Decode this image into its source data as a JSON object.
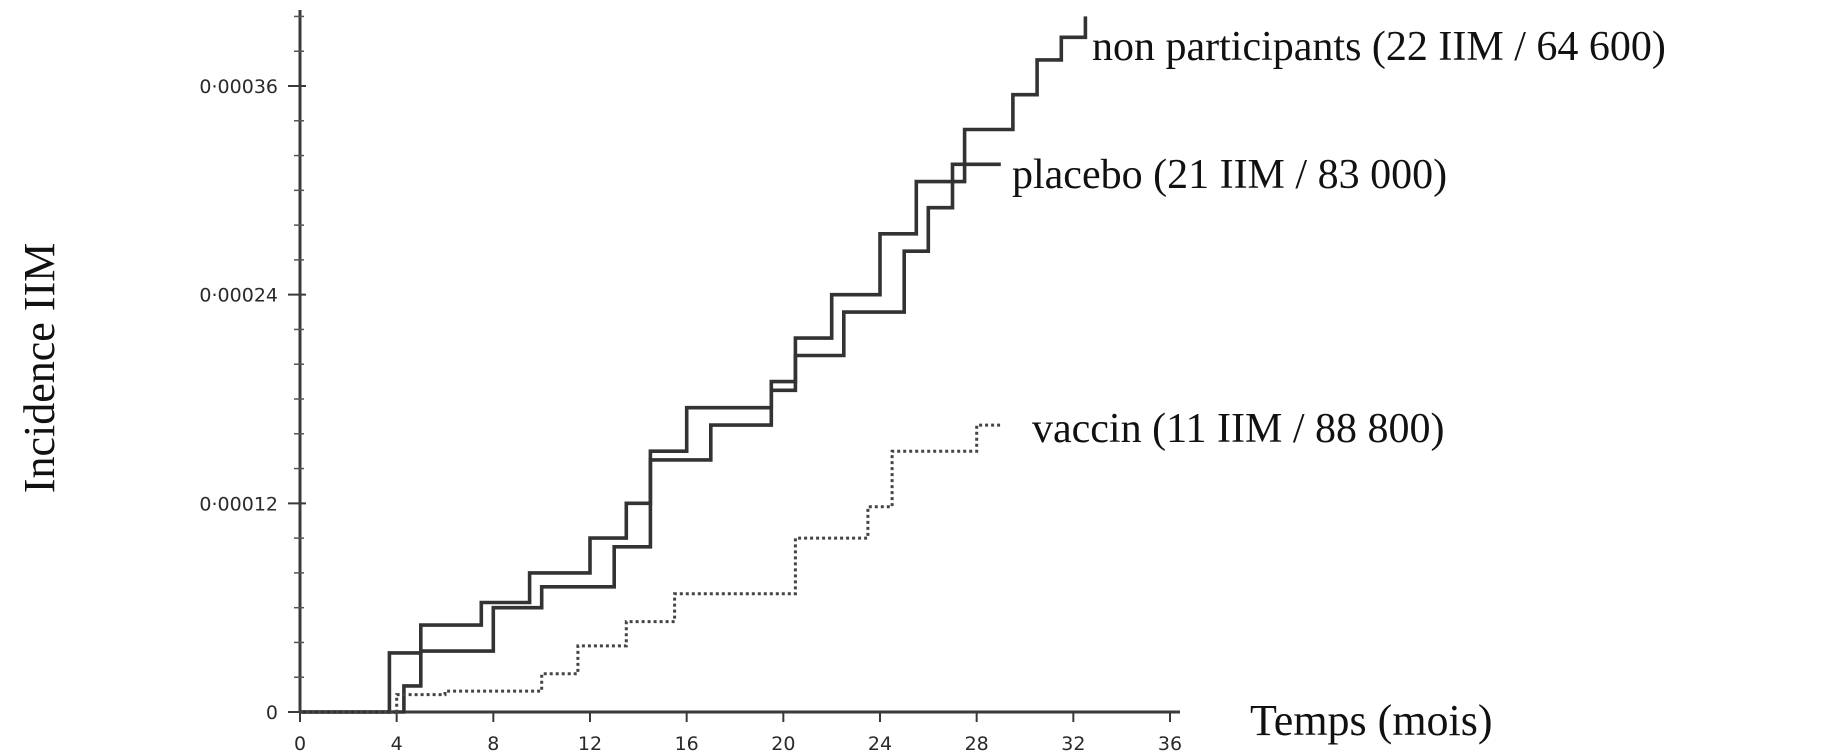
{
  "chart_data": {
    "type": "line",
    "step": true,
    "xlabel": "Temps (mois)",
    "ylabel": "Incidence  IIM",
    "xlim": [
      0,
      36
    ],
    "ylim": [
      0,
      0.0004
    ],
    "x_ticks": [
      0,
      4,
      8,
      12,
      16,
      20,
      24,
      28,
      32,
      36
    ],
    "x_tick_labels": [
      "0",
      "4",
      "8",
      "12",
      "16",
      "20",
      "24",
      "28",
      "32",
      "36"
    ],
    "y_ticks": [
      0,
      0.00012,
      0.00024,
      0.00036
    ],
    "y_tick_labels": [
      "0",
      "0·00012",
      "0·00024",
      "0·00036"
    ],
    "grid": false,
    "series": [
      {
        "name": "non participants (22 IIM / 64 600)",
        "style": "solid",
        "color": "#333333",
        "points": [
          [
            0,
            0
          ],
          [
            3.7,
            0
          ],
          [
            3.7,
            3.4e-05
          ],
          [
            5,
            3.4e-05
          ],
          [
            5,
            5e-05
          ],
          [
            7.5,
            5e-05
          ],
          [
            7.5,
            6.3e-05
          ],
          [
            9.5,
            6.3e-05
          ],
          [
            9.5,
            8e-05
          ],
          [
            12,
            8e-05
          ],
          [
            12,
            0.0001
          ],
          [
            13.5,
            0.0001
          ],
          [
            13.5,
            0.00012
          ],
          [
            14.5,
            0.00012
          ],
          [
            14.5,
            0.00015
          ],
          [
            16,
            0.00015
          ],
          [
            16,
            0.000175
          ],
          [
            19.5,
            0.000175
          ],
          [
            19.5,
            0.00019
          ],
          [
            20.5,
            0.00019
          ],
          [
            20.5,
            0.000215
          ],
          [
            22,
            0.000215
          ],
          [
            22,
            0.00024
          ],
          [
            24,
            0.00024
          ],
          [
            24,
            0.000275
          ],
          [
            25.5,
            0.000275
          ],
          [
            25.5,
            0.000305
          ],
          [
            27.5,
            0.000305
          ],
          [
            27.5,
            0.000335
          ],
          [
            29.5,
            0.000335
          ],
          [
            29.5,
            0.000355
          ],
          [
            30.5,
            0.000355
          ],
          [
            30.5,
            0.000375
          ],
          [
            31.5,
            0.000375
          ],
          [
            31.5,
            0.000388
          ],
          [
            32.5,
            0.000388
          ],
          [
            32.5,
            0.0004
          ]
        ]
      },
      {
        "name": "placebo (21 IIM  / 83 000)",
        "style": "solid",
        "color": "#333333",
        "points": [
          [
            0,
            0
          ],
          [
            4.3,
            0
          ],
          [
            4.3,
            1.5e-05
          ],
          [
            5,
            1.5e-05
          ],
          [
            5,
            3.5e-05
          ],
          [
            8,
            3.5e-05
          ],
          [
            8,
            6e-05
          ],
          [
            10,
            6e-05
          ],
          [
            10,
            7.2e-05
          ],
          [
            13,
            7.2e-05
          ],
          [
            13,
            9.5e-05
          ],
          [
            14.5,
            9.5e-05
          ],
          [
            14.5,
            0.000145
          ],
          [
            17,
            0.000145
          ],
          [
            17,
            0.000165
          ],
          [
            19.5,
            0.000165
          ],
          [
            19.5,
            0.000185
          ],
          [
            20.5,
            0.000185
          ],
          [
            20.5,
            0.000205
          ],
          [
            22.5,
            0.000205
          ],
          [
            22.5,
            0.00023
          ],
          [
            25,
            0.00023
          ],
          [
            25,
            0.000265
          ],
          [
            26,
            0.000265
          ],
          [
            26,
            0.00029
          ],
          [
            27,
            0.00029
          ],
          [
            27,
            0.000315
          ],
          [
            29,
            0.000315
          ]
        ]
      },
      {
        "name": "vaccin (11 IIM / 88 800)",
        "style": "dotted",
        "color": "#444444",
        "points": [
          [
            0,
            0
          ],
          [
            4,
            0
          ],
          [
            4,
            1e-05
          ],
          [
            6,
            1e-05
          ],
          [
            6,
            1.2e-05
          ],
          [
            10,
            1.2e-05
          ],
          [
            10,
            2.2e-05
          ],
          [
            11.5,
            2.2e-05
          ],
          [
            11.5,
            3.8e-05
          ],
          [
            13.5,
            3.8e-05
          ],
          [
            13.5,
            5.2e-05
          ],
          [
            15.5,
            5.2e-05
          ],
          [
            15.5,
            6.8e-05
          ],
          [
            20.5,
            6.8e-05
          ],
          [
            20.5,
            0.0001
          ],
          [
            23.5,
            0.0001
          ],
          [
            23.5,
            0.000118
          ],
          [
            24.5,
            0.000118
          ],
          [
            24.5,
            0.00015
          ],
          [
            28,
            0.00015
          ],
          [
            28,
            0.000165
          ],
          [
            29,
            0.000165
          ]
        ]
      }
    ]
  }
}
